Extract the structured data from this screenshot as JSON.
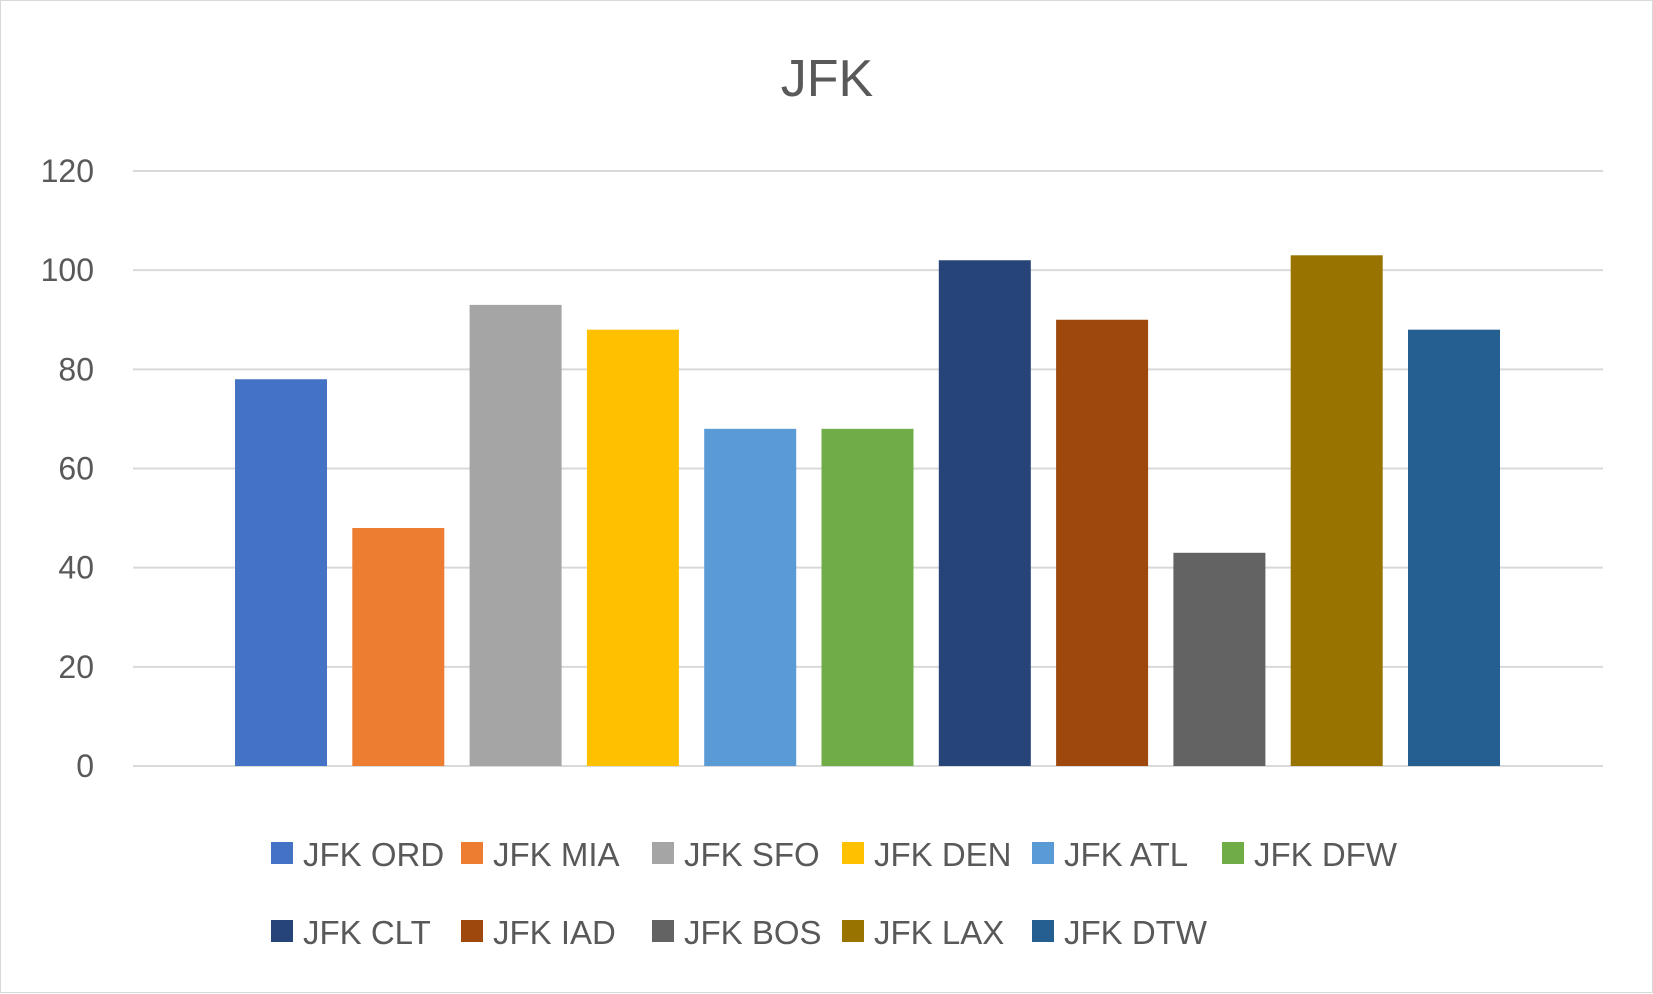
{
  "chart_data": {
    "type": "bar",
    "title": "JFK",
    "xlabel": "",
    "ylabel": "",
    "ylim": [
      0,
      120
    ],
    "yticks": [
      0,
      20,
      40,
      60,
      80,
      100,
      120
    ],
    "grid": true,
    "legend_position": "bottom",
    "categories": [
      "JFK ORD",
      "JFK MIA",
      "JFK SFO",
      "JFK DEN",
      "JFK ATL",
      "JFK DFW",
      "JFK CLT",
      "JFK IAD",
      "JFK BOS",
      "JFK LAX",
      "JFK DTW"
    ],
    "values": [
      78,
      48,
      93,
      88,
      68,
      68,
      102,
      90,
      43,
      103,
      88
    ],
    "colors": [
      "#4472c4",
      "#ed7d31",
      "#a5a5a5",
      "#ffc000",
      "#5b9bd5",
      "#70ad47",
      "#264478",
      "#9e480e",
      "#636363",
      "#997300",
      "#255e91"
    ]
  }
}
